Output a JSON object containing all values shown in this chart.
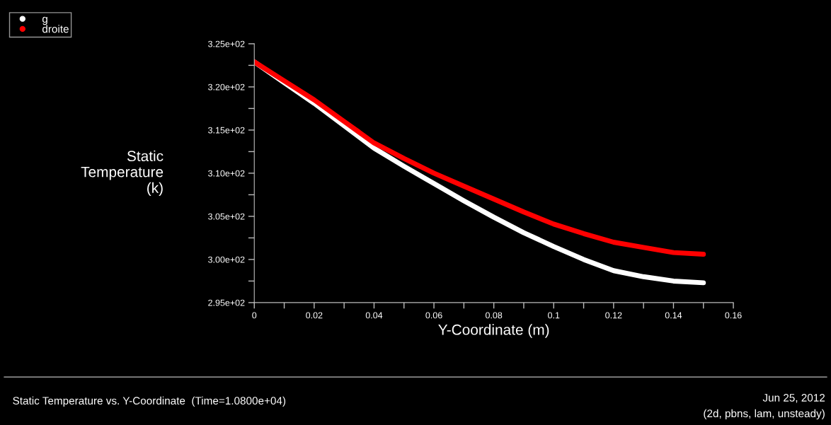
{
  "chart_data": {
    "type": "line",
    "xlabel": "Y-Coordinate (m)",
    "ylabel": "Static\nTemperature\n(k)",
    "x": [
      0,
      0.01,
      0.02,
      0.03,
      0.04,
      0.05,
      0.06,
      0.07,
      0.08,
      0.09,
      0.1,
      0.11,
      0.12,
      0.13,
      0.14,
      0.15
    ],
    "series": [
      {
        "name": "g",
        "color": "#ffffff",
        "values": [
          322.9,
          320.5,
          318.1,
          315.5,
          312.9,
          310.8,
          308.8,
          306.8,
          304.9,
          303.1,
          301.5,
          300.0,
          298.7,
          298.0,
          297.5,
          297.3
        ]
      },
      {
        "name": "droite",
        "color": "#ff0000",
        "values": [
          322.9,
          320.7,
          318.5,
          316.0,
          313.5,
          311.7,
          310.0,
          308.5,
          307.0,
          305.5,
          304.1,
          303.0,
          302.0,
          301.4,
          300.8,
          300.6
        ]
      }
    ],
    "xlim": [
      0,
      0.16
    ],
    "xticks": [
      0,
      {
        "value": 0.01,
        "label": null
      },
      0.02,
      {
        "value": 0.03,
        "label": null
      },
      0.04,
      {
        "value": 0.05,
        "label": null
      },
      0.06,
      {
        "value": 0.07,
        "label": null
      },
      0.08,
      {
        "value": 0.09,
        "label": null
      },
      0.1,
      {
        "value": 0.11,
        "label": null
      },
      0.12,
      {
        "value": 0.13,
        "label": null
      },
      0.14,
      {
        "value": 0.15,
        "label": null
      },
      0.16
    ],
    "ylim": [
      295,
      325
    ],
    "yticks": [
      {
        "value": 295,
        "label": "2.95e+02"
      },
      {
        "value": 297.5,
        "label": null
      },
      {
        "value": 300,
        "label": "3.00e+02"
      },
      {
        "value": 302.5,
        "label": null
      },
      {
        "value": 305,
        "label": "3.05e+02"
      },
      {
        "value": 307.5,
        "label": null
      },
      {
        "value": 310,
        "label": "3.10e+02"
      },
      {
        "value": 312.5,
        "label": null
      },
      {
        "value": 315,
        "label": "3.15e+02"
      },
      {
        "value": 317.5,
        "label": null
      },
      {
        "value": 320,
        "label": "3.20e+02"
      },
      {
        "value": 322.5,
        "label": null
      },
      {
        "value": 325,
        "label": "3.25e+02"
      }
    ],
    "grid": false,
    "legend": "top left",
    "marker": "none",
    "line_style": "solid",
    "annotations": [
      "Static Temperature vs. Y-Coordinate  (Time=1.0800e+04)",
      "Jun 25, 2012",
      "(2d, pbns, lam, unsteady)"
    ]
  }
}
